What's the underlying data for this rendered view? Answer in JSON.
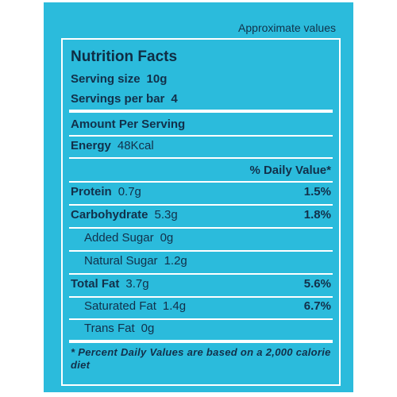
{
  "header": {
    "approx": "Approximate values"
  },
  "panel": {
    "title": "Nutrition Facts",
    "serving_size": {
      "label": "Serving size",
      "value": "10g"
    },
    "servings_per_bar": {
      "label": "Servings per bar",
      "value": "4"
    },
    "amount_per_serving": "Amount Per Serving",
    "energy": {
      "label": "Energy",
      "value": "48Kcal"
    },
    "daily_value_header": "% Daily Value*",
    "nutrients": [
      {
        "label": "Protein",
        "value": "0.7g",
        "pct": "1.5%"
      },
      {
        "label": "Carbohydrate",
        "value": "5.3g",
        "pct": "1.8%"
      },
      {
        "label": "Added Sugar",
        "value": "0g",
        "pct": ""
      },
      {
        "label": "Natural Sugar",
        "value": "1.2g",
        "pct": ""
      },
      {
        "label": "Total Fat",
        "value": "3.7g",
        "pct": "5.6%"
      },
      {
        "label": "Saturated Fat",
        "value": "1.4g",
        "pct": "6.7%"
      },
      {
        "label": "Trans Fat",
        "value": "0g",
        "pct": ""
      }
    ],
    "footnote": "* Percent Daily Values are based on a 2,000 calorie diet"
  },
  "colors": {
    "background": "#2bbbdc",
    "text": "#12304a",
    "rules": "#ffffff"
  }
}
